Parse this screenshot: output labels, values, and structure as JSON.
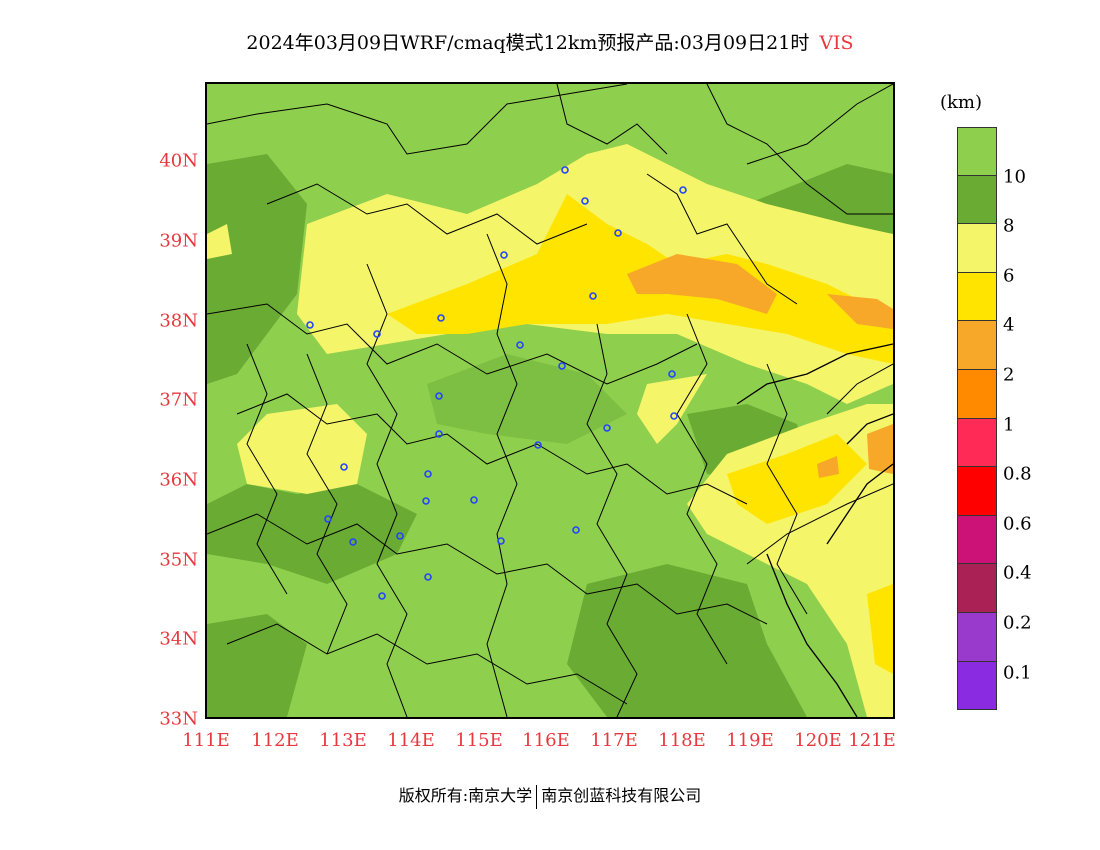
{
  "title": {
    "main": "2024年03月09日WRF/cmaq模式12km预报产品:03月09日21时",
    "variable": "VIS"
  },
  "latitude_labels": [
    "40N",
    "39N",
    "38N",
    "37N",
    "36N",
    "35N",
    "34N",
    "33N"
  ],
  "longitude_labels": [
    "111E",
    "112E",
    "113E",
    "114E",
    "115E",
    "116E",
    "117E",
    "118E",
    "119E",
    "120E",
    "121E"
  ],
  "colorbar": {
    "unit": "(km)",
    "labels": [
      "10",
      "8",
      "6",
      "4",
      "2",
      "1",
      "0.8",
      "0.6",
      "0.4",
      "0.2",
      "0.1"
    ],
    "colors": [
      "#8fcf4e",
      "#6aab33",
      "#f5f56a",
      "#ffe400",
      "#f7a828",
      "#ff8a00",
      "#ff2a55",
      "#ff0000",
      "#cc1177",
      "#aa2255",
      "#9a3acc",
      "#8a2be2"
    ]
  },
  "footer": {
    "copyright": "版权所有:南京大学",
    "company": "南京创蓝科技有限公司"
  }
}
